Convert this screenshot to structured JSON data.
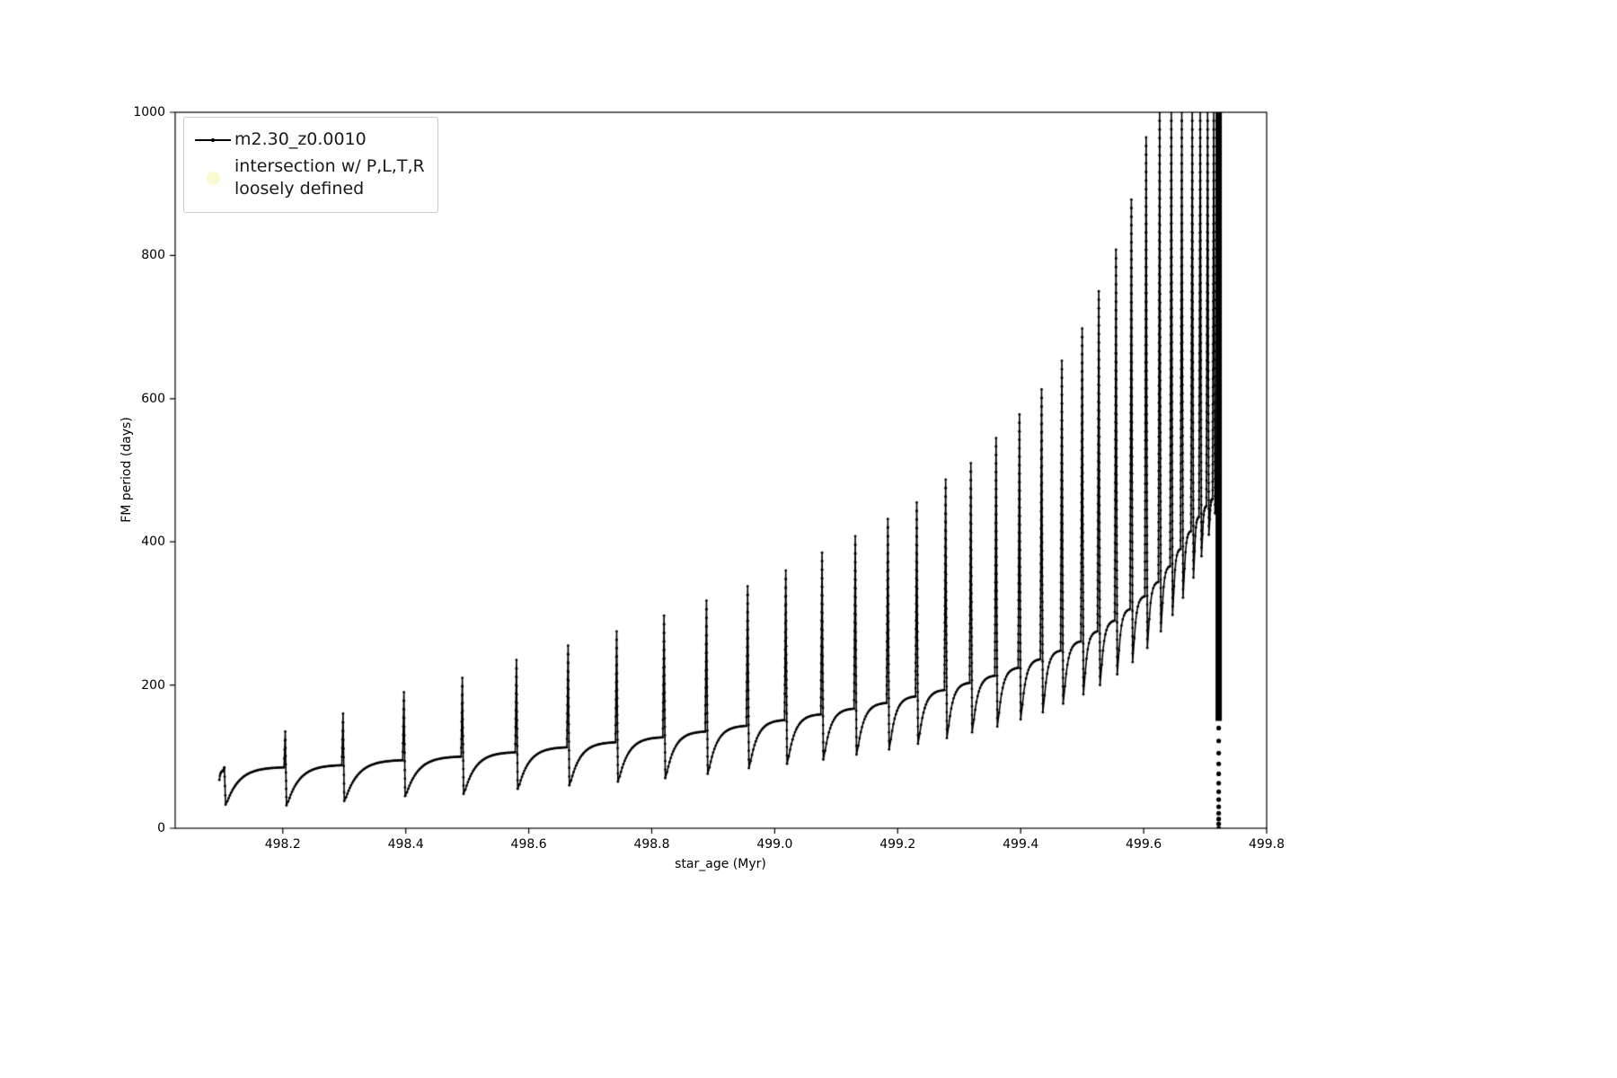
{
  "figure": {
    "background": "#ffffff",
    "line_color": "#000000"
  },
  "axes": {
    "xlabel": "star_age (Myr)",
    "ylabel": "FM period (days)",
    "xticklabels": [
      "498.2",
      "498.4",
      "498.6",
      "498.8",
      "499.0",
      "499.2",
      "499.4",
      "499.6",
      "499.8"
    ],
    "yticklabels": [
      "0",
      "200",
      "400",
      "600",
      "800",
      "1000"
    ]
  },
  "legend": {
    "position": "upper-left",
    "entries": [
      {
        "label": "m2.30_z0.0010",
        "marker": "line-with-dot",
        "color": "#000000"
      },
      {
        "label": "intersection w/ P,L,T,R\nloosely defined",
        "marker": "dot",
        "color": "#f7f7c3"
      }
    ]
  },
  "chart_data": {
    "type": "line",
    "title": "",
    "xlabel": "star_age (Myr)",
    "ylabel": "FM period (days)",
    "xlim": [
      498.025,
      499.8
    ],
    "ylim": [
      0,
      1000
    ],
    "xticks": [
      498.2,
      498.4,
      498.6,
      498.8,
      499.0,
      499.2,
      499.4,
      499.6,
      499.8
    ],
    "yticks": [
      0,
      200,
      400,
      600,
      800,
      1000
    ],
    "grid": false,
    "series": [
      {
        "name": "m2.30_z0.0010",
        "color": "#000000",
        "structure": "relaxation-oscillation: slow concave rise from dip to base, narrow spike to peak at spike_t, drop to next dip; spike peaks above 1000 are clipped at the axis top",
        "start": {
          "t": 498.096,
          "y": 58
        },
        "spike_t": [
          498.105,
          498.204,
          498.298,
          498.397,
          498.492,
          498.58,
          498.664,
          498.743,
          498.82,
          498.889,
          498.956,
          499.018,
          499.077,
          499.131,
          499.184,
          499.231,
          499.278,
          499.319,
          499.36,
          499.398,
          499.434,
          499.467,
          499.5,
          499.527,
          499.555,
          499.58,
          499.604,
          499.626,
          499.645,
          499.662,
          499.679,
          499.692,
          499.704,
          499.714
        ],
        "spike_peak": [
          85,
          135,
          160,
          190,
          210,
          235,
          255,
          275,
          297,
          318,
          338,
          360,
          385,
          408,
          432,
          455,
          487,
          510,
          545,
          578,
          613,
          653,
          698,
          750,
          808,
          878,
          965,
          1000,
          1000,
          1000,
          1000,
          1000,
          1000,
          1000
        ],
        "dip_after": [
          33,
          32,
          38,
          45,
          48,
          55,
          60,
          65,
          70,
          76,
          84,
          90,
          96,
          103,
          110,
          118,
          126,
          134,
          142,
          152,
          162,
          174,
          187,
          200,
          215,
          232,
          252,
          275,
          298,
          322,
          350,
          380,
          410,
          440
        ],
        "base_before": [
          80,
          85,
          88,
          95,
          100,
          106,
          113,
          120,
          127,
          135,
          143,
          151,
          159,
          167,
          175,
          184,
          193,
          203,
          213,
          224,
          236,
          248,
          261,
          275,
          290,
          306,
          324,
          344,
          366,
          390,
          415,
          435,
          450,
          460
        ],
        "final_rise": {
          "t": [
            499.717,
            499.719,
            499.7205,
            499.7215
          ],
          "y": [
            440,
            520,
            660,
            1000
          ]
        }
      }
    ],
    "collapse": {
      "t": 499.722,
      "solid_range": [
        150,
        1000
      ],
      "dot_values": [
        140,
        122,
        105,
        90,
        76,
        63,
        51,
        40,
        30,
        21,
        13,
        6,
        0
      ]
    }
  }
}
